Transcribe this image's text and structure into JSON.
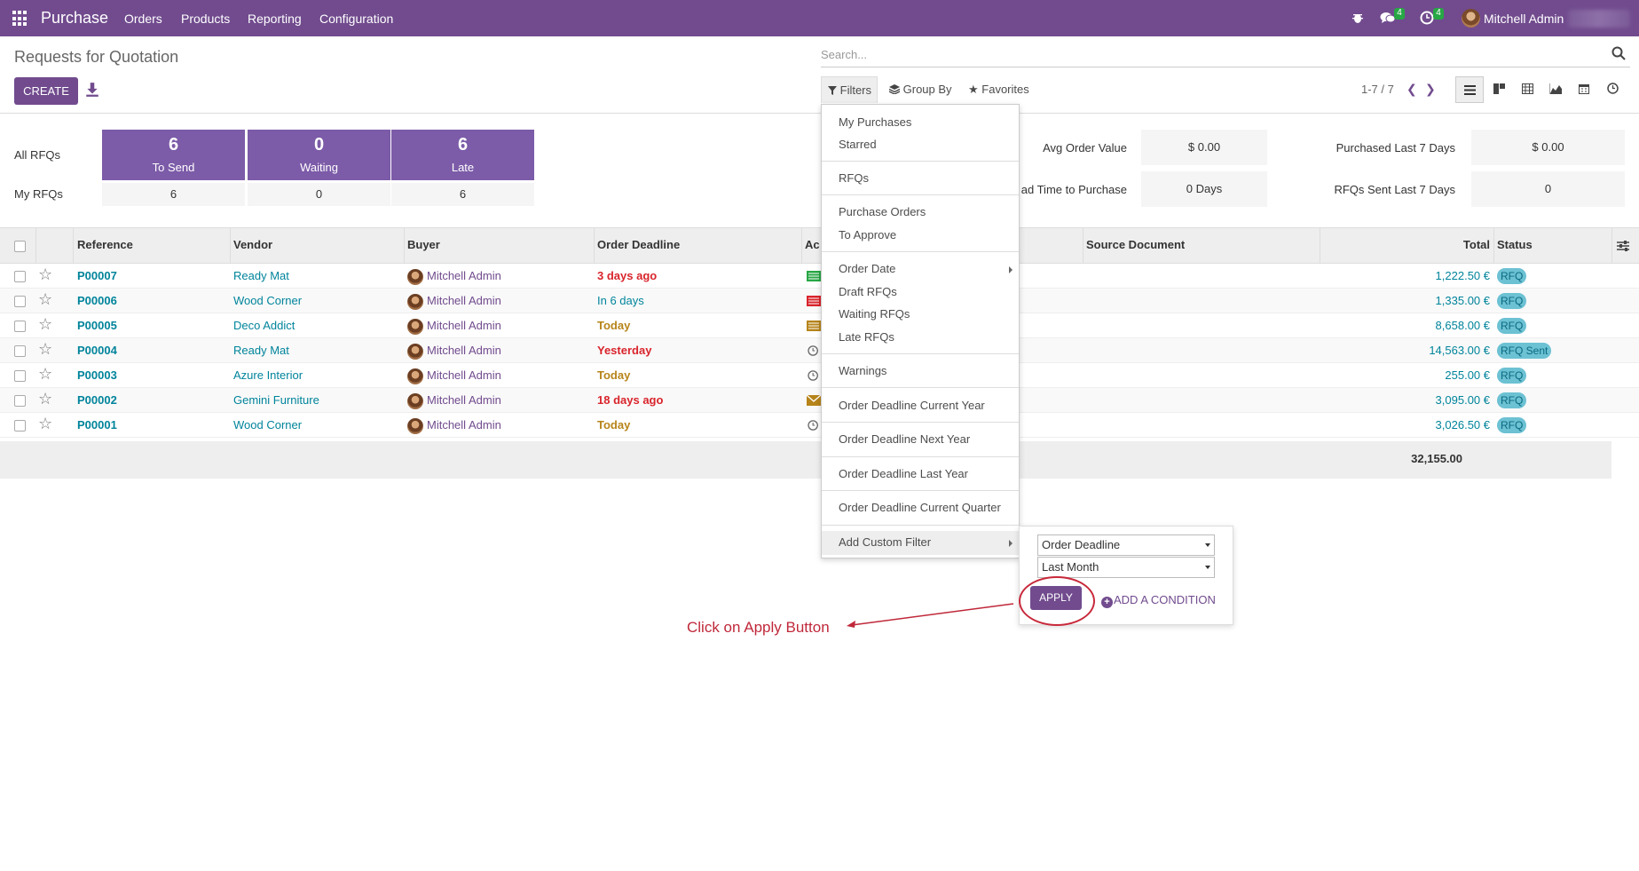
{
  "nav": {
    "app_title": "Purchase",
    "menu": [
      "Orders",
      "Products",
      "Reporting",
      "Configuration"
    ],
    "messages_count": "4",
    "activities_count": "4",
    "user_name": "Mitchell Admin"
  },
  "control": {
    "page_title": "Requests for Quotation",
    "create_label": "CREATE",
    "search_placeholder": "Search...",
    "filters_label": "Filters",
    "groupby_label": "Group By",
    "favorites_label": "Favorites",
    "pager": "1-7 / 7"
  },
  "dashboard": {
    "all_rfqs_label": "All RFQs",
    "my_rfqs_label": "My RFQs",
    "tiles": [
      {
        "count": "6",
        "label": "To Send",
        "my": "6"
      },
      {
        "count": "0",
        "label": "Waiting",
        "my": "0"
      },
      {
        "count": "6",
        "label": "Late",
        "my": "6"
      }
    ],
    "kpis": [
      {
        "label": "Avg Order Value",
        "value": "$ 0.00"
      },
      {
        "label": "ad Time to Purchase",
        "value": "0 Days"
      },
      {
        "label": "Purchased Last 7 Days",
        "value": "$ 0.00"
      },
      {
        "label": "RFQs Sent Last 7 Days",
        "value": "0"
      }
    ]
  },
  "table": {
    "headers": {
      "reference": "Reference",
      "vendor": "Vendor",
      "buyer": "Buyer",
      "deadline": "Order Deadline",
      "activity": "Ac",
      "source": "Source Document",
      "total": "Total",
      "status": "Status"
    },
    "rows": [
      {
        "ref": "P00007",
        "vendor": "Ready Mat",
        "buyer": "Mitchell Admin",
        "deadline": "3 days ago",
        "deadline_style": "red",
        "total": "1,222.50 €",
        "status": "RFQ"
      },
      {
        "ref": "P00006",
        "vendor": "Wood Corner",
        "buyer": "Mitchell Admin",
        "deadline": "In 6 days",
        "deadline_style": "blue",
        "total": "1,335.00 €",
        "status": "RFQ"
      },
      {
        "ref": "P00005",
        "vendor": "Deco Addict",
        "buyer": "Mitchell Admin",
        "deadline": "Today",
        "deadline_style": "orange",
        "total": "8,658.00 €",
        "status": "RFQ"
      },
      {
        "ref": "P00004",
        "vendor": "Ready Mat",
        "buyer": "Mitchell Admin",
        "deadline": "Yesterday",
        "deadline_style": "red",
        "total": "14,563.00 €",
        "status": "RFQ Sent"
      },
      {
        "ref": "P00003",
        "vendor": "Azure Interior",
        "buyer": "Mitchell Admin",
        "deadline": "Today",
        "deadline_style": "orange",
        "total": "255.00 €",
        "status": "RFQ"
      },
      {
        "ref": "P00002",
        "vendor": "Gemini Furniture",
        "buyer": "Mitchell Admin",
        "deadline": "18 days ago",
        "deadline_style": "red",
        "total": "3,095.00 €",
        "status": "RFQ"
      },
      {
        "ref": "P00001",
        "vendor": "Wood Corner",
        "buyer": "Mitchell Admin",
        "deadline": "Today",
        "deadline_style": "orange",
        "total": "3,026.50 €",
        "status": "RFQ"
      }
    ],
    "grand_total": "32,155.00"
  },
  "filters_menu": {
    "items": [
      "My Purchases",
      "Starred",
      "RFQs",
      "Purchase Orders",
      "To Approve",
      "Order Date",
      "Draft RFQs",
      "Waiting RFQs",
      "Late RFQs",
      "Warnings",
      "Order Deadline Current Year",
      "Order Deadline Next Year",
      "Order Deadline Last Year",
      "Order Deadline Current Quarter",
      "Add Custom Filter"
    ]
  },
  "custom_filter": {
    "field": "Order Deadline",
    "operator": "Last Month",
    "apply_label": "APPLY",
    "add_condition_label": "ADD A CONDITION"
  },
  "annotation": "Click on Apply Button",
  "colors": {
    "brand": "#714b8e",
    "link": "#00849b",
    "overdue": "#d9242c",
    "today": "#b7841a",
    "badge": "#28a745",
    "annotation": "#c0283a"
  }
}
